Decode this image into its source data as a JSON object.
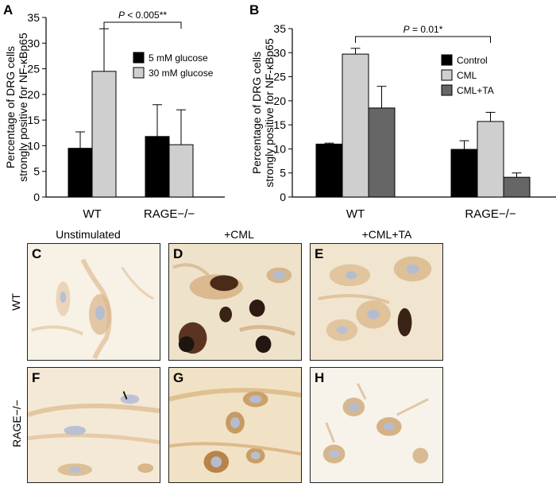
{
  "chart_data": [
    {
      "type": "bar",
      "panel": "A",
      "categories": [
        "WT",
        "RAGE−/−"
      ],
      "series": [
        {
          "name": "5 mM glucose",
          "values": [
            9.5,
            11.8
          ],
          "errors": [
            3.2,
            6.2
          ],
          "color": "#000000"
        },
        {
          "name": "30 mM glucose",
          "values": [
            24.5,
            10.2
          ],
          "errors": [
            8.3,
            6.8
          ],
          "color": "#cfcfcf"
        }
      ],
      "ylabel_line1": "Percentage of DRG cells",
      "ylabel_line2": "strongly positive for NF-κBp65",
      "ylim": [
        0,
        35
      ],
      "yticks": [
        "0",
        "5",
        "10",
        "15",
        "20",
        "25",
        "30",
        "35"
      ],
      "annotation": {
        "prefix": "P",
        "text": " < 0.005**"
      },
      "legend_position": "right"
    },
    {
      "type": "bar",
      "panel": "B",
      "categories": [
        "WT",
        "RAGE−/−"
      ],
      "series": [
        {
          "name": "Control",
          "values": [
            11.0,
            9.9
          ],
          "errors": [
            0.2,
            1.8
          ],
          "color": "#000000"
        },
        {
          "name": "CML",
          "values": [
            29.7,
            15.7
          ],
          "errors": [
            1.2,
            1.9
          ],
          "color": "#cfcfcf"
        },
        {
          "name": "CML+TA",
          "values": [
            18.5,
            4.1
          ],
          "errors": [
            4.5,
            0.9
          ],
          "color": "#666666"
        }
      ],
      "ylabel_line1": "Percentage of DRG cells",
      "ylabel_line2": "strongly positive for NF-κBp65",
      "ylim": [
        0,
        35
      ],
      "yticks": [
        "0",
        "5",
        "10",
        "15",
        "20",
        "25",
        "30",
        "35"
      ],
      "annotation": {
        "prefix": "P",
        "text": " = 0.01*"
      },
      "legend_position": "right"
    }
  ],
  "micrographs": {
    "column_headers": [
      "Unstimulated",
      "+CML",
      "+CML+TA"
    ],
    "row_labels": [
      "WT",
      "RAGE−/−"
    ],
    "panels": [
      "C",
      "D",
      "E",
      "F",
      "G",
      "H"
    ]
  },
  "colors": {
    "background_cream": "#f4ead9",
    "cell_stain": "#c9975a",
    "nucleus": "#a7b7cf",
    "dark_cell": "#3a2214"
  }
}
